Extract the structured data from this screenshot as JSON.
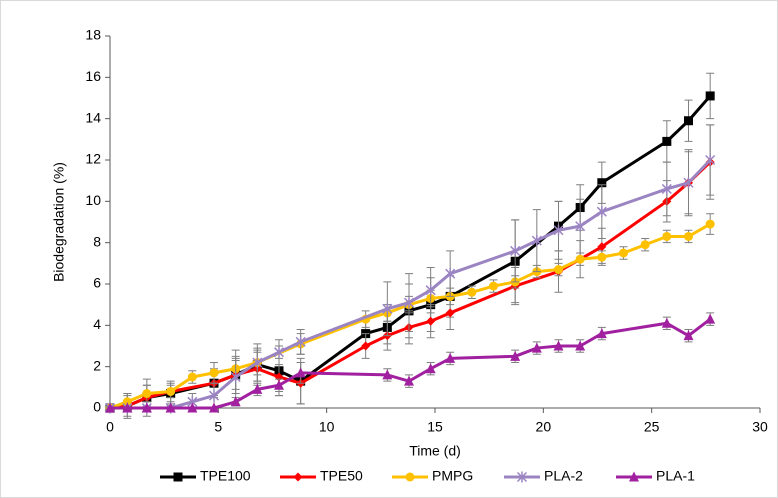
{
  "chart_data": {
    "type": "line",
    "xlabel": "Time (d)",
    "ylabel": "Biodegradation (%)",
    "xlim": [
      0,
      30
    ],
    "xticks": [
      0,
      5,
      10,
      15,
      20,
      25,
      30
    ],
    "ylim": [
      0,
      18
    ],
    "yticks": [
      0,
      2,
      4,
      6,
      8,
      10,
      12,
      14,
      16,
      18
    ],
    "grid": false,
    "legend": "bottom",
    "error_color": "#7f7f7f",
    "series": [
      {
        "name": "TPE100",
        "color": "#000000",
        "marker": "square",
        "x": [
          0,
          0.8,
          1.7,
          2.8,
          4.8,
          5.8,
          6.8,
          7.8,
          8.8,
          11.8,
          12.8,
          13.8,
          14.8,
          15.7,
          18.7,
          20.7,
          21.7,
          22.7,
          25.7,
          26.7,
          27.7
        ],
        "values": [
          0,
          0.1,
          0.5,
          0.7,
          1.2,
          1.6,
          2.1,
          1.8,
          1.3,
          3.6,
          3.9,
          4.7,
          5.0,
          5.4,
          7.1,
          8.8,
          9.7,
          10.9,
          12.9,
          13.9,
          15.1
        ],
        "errors": [
          0.2,
          0.6,
          0.9,
          0.5,
          0.7,
          0.9,
          0.8,
          1.2,
          1.1,
          0.6,
          0.8,
          1.3,
          1.3,
          1.0,
          2.0,
          1.2,
          1.1,
          1.0,
          1.0,
          1.0,
          1.1
        ]
      },
      {
        "name": "TPE50",
        "color": "#ff0000",
        "marker": "diamond",
        "x": [
          0,
          0.8,
          1.7,
          2.8,
          4.8,
          5.8,
          6.8,
          7.8,
          8.8,
          11.8,
          12.8,
          13.8,
          14.8,
          15.7,
          18.7,
          20.7,
          21.7,
          22.7,
          25.7,
          26.7,
          27.7
        ],
        "values": [
          0,
          0.1,
          0.5,
          0.8,
          1.2,
          1.6,
          1.9,
          1.5,
          1.2,
          3.0,
          3.5,
          3.9,
          4.2,
          4.6,
          5.9,
          6.6,
          7.2,
          7.8,
          10.0,
          10.9,
          11.9
        ],
        "errors": [
          0.2,
          0.5,
          0.6,
          0.5,
          0.6,
          0.7,
          0.8,
          0.9,
          1.0,
          0.6,
          0.7,
          0.8,
          0.8,
          0.8,
          0.9,
          1.0,
          0.9,
          0.9,
          1.0,
          1.5,
          1.8
        ]
      },
      {
        "name": "PMPG",
        "color": "#ffc000",
        "marker": "circle",
        "x": [
          0,
          0.8,
          1.7,
          2.8,
          3.8,
          4.8,
          5.8,
          6.8,
          8.8,
          11.8,
          12.8,
          13.8,
          14.8,
          15.7,
          16.7,
          17.7,
          18.7,
          19.7,
          20.7,
          21.7,
          22.7,
          23.7,
          24.7,
          25.7,
          26.7,
          27.7
        ],
        "values": [
          0,
          0.3,
          0.7,
          0.8,
          1.5,
          1.7,
          1.9,
          2.2,
          3.1,
          4.3,
          4.6,
          5.0,
          5.3,
          5.4,
          5.6,
          5.9,
          6.1,
          6.6,
          6.7,
          7.2,
          7.3,
          7.5,
          7.9,
          8.3,
          8.3,
          8.9
        ],
        "errors": [
          0.2,
          0.4,
          0.4,
          0.3,
          0.3,
          0.5,
          0.5,
          0.6,
          0.5,
          0.4,
          0.4,
          0.4,
          0.4,
          0.4,
          0.3,
          0.3,
          0.3,
          0.3,
          0.3,
          0.3,
          0.3,
          0.3,
          0.3,
          0.3,
          0.3,
          0.5
        ]
      },
      {
        "name": "PLA-2",
        "color": "#9b84c2",
        "marker": "star",
        "x": [
          0,
          0.8,
          1.7,
          2.8,
          3.8,
          4.8,
          5.8,
          6.8,
          7.8,
          8.8,
          12.8,
          13.8,
          14.8,
          15.7,
          18.7,
          19.7,
          20.7,
          21.7,
          22.7,
          25.7,
          26.7,
          27.7
        ],
        "values": [
          0,
          0,
          0,
          0,
          0.3,
          0.6,
          1.5,
          2.2,
          2.7,
          3.2,
          4.8,
          5.1,
          5.7,
          6.5,
          7.6,
          8.1,
          8.6,
          8.8,
          9.5,
          10.6,
          10.9,
          12.0
        ],
        "errors": [
          0.1,
          0.1,
          0.1,
          0.1,
          0.4,
          0.6,
          1.3,
          0.9,
          0.6,
          0.6,
          1.3,
          1.4,
          1.1,
          1.1,
          1.5,
          1.5,
          1.4,
          1.3,
          1.3,
          1.3,
          1.6,
          1.7
        ]
      },
      {
        "name": "PLA-1",
        "color": "#a020a0",
        "marker": "triangle",
        "x": [
          0,
          0.8,
          1.7,
          2.8,
          3.8,
          4.8,
          5.8,
          6.8,
          7.8,
          8.8,
          12.8,
          13.8,
          14.8,
          15.7,
          18.7,
          19.7,
          20.7,
          21.7,
          22.7,
          25.7,
          26.7,
          27.7
        ],
        "values": [
          0,
          0,
          0,
          0,
          0,
          0,
          0.3,
          0.9,
          1.1,
          1.7,
          1.6,
          1.3,
          1.9,
          2.4,
          2.5,
          2.9,
          3.0,
          3.0,
          3.6,
          4.1,
          3.5,
          4.3
        ],
        "errors": [
          0.05,
          0.05,
          0.05,
          0.05,
          0.05,
          0.05,
          0.2,
          0.3,
          0.3,
          0.5,
          0.3,
          0.3,
          0.3,
          0.3,
          0.3,
          0.3,
          0.3,
          0.3,
          0.3,
          0.3,
          0.3,
          0.3
        ]
      }
    ]
  }
}
